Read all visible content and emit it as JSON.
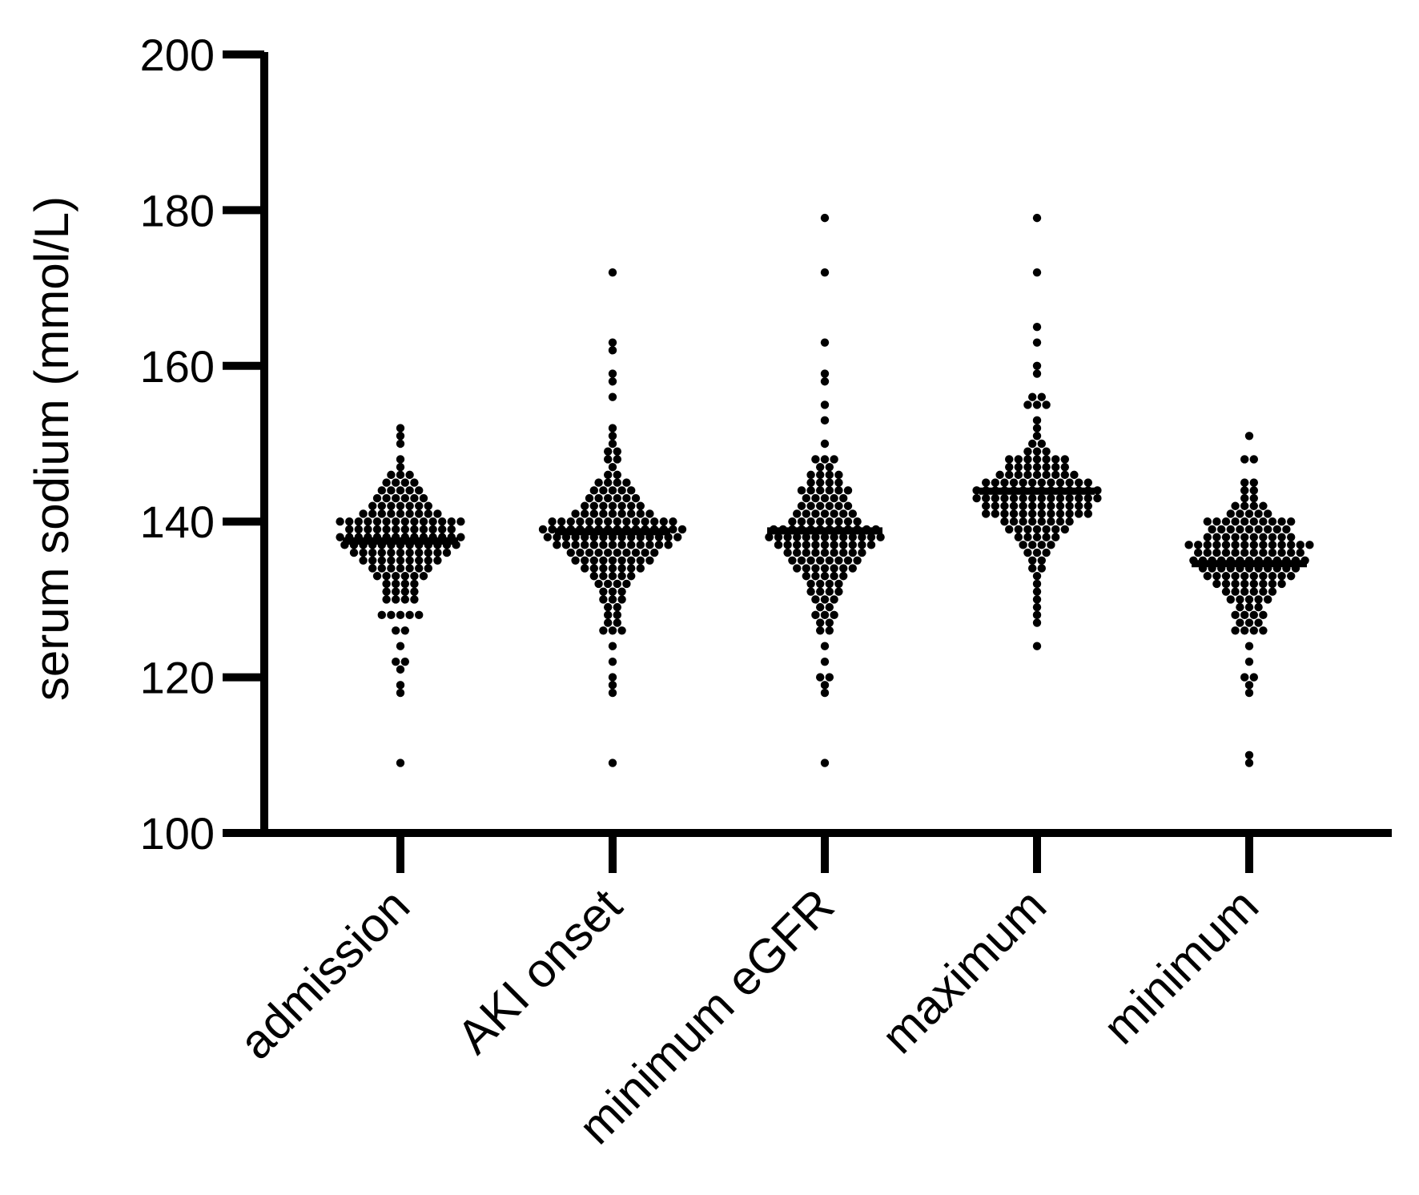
{
  "chart_data": {
    "type": "scatter",
    "subtype": "beeswarm-dot-plot",
    "title": "",
    "xlabel": "",
    "ylabel": "serum sodium (mmol/L)",
    "ylim": [
      100,
      200
    ],
    "yticks": [
      100,
      120,
      140,
      160,
      180,
      200
    ],
    "grid": false,
    "legend": "none",
    "colors": {
      "points": "#000000",
      "axes": "#000000",
      "median": "#000000"
    },
    "categories": [
      "admission",
      "AKI onset",
      "minimum eGFR",
      "maximum",
      "minimum"
    ],
    "series": [
      {
        "category": "admission",
        "median": 137.5,
        "values": [
          152,
          151,
          150,
          148,
          147,
          146,
          146,
          146,
          145,
          145,
          145,
          145,
          144,
          144,
          144,
          144,
          144,
          143,
          143,
          143,
          143,
          143,
          143,
          142,
          142,
          142,
          142,
          142,
          142,
          142,
          141,
          141,
          141,
          141,
          141,
          141,
          141,
          141,
          141,
          140,
          140,
          140,
          140,
          140,
          140,
          140,
          140,
          140,
          140,
          140,
          140,
          140,
          140,
          139,
          139,
          139,
          139,
          139,
          139,
          139,
          139,
          139,
          139,
          139,
          139,
          138,
          138,
          138,
          138,
          138,
          138,
          138,
          138,
          138,
          138,
          138,
          138,
          138,
          138,
          137,
          137,
          137,
          137,
          137,
          137,
          137,
          137,
          137,
          137,
          137,
          137,
          137,
          136,
          136,
          136,
          136,
          136,
          136,
          136,
          136,
          136,
          136,
          136,
          135,
          135,
          135,
          135,
          135,
          135,
          135,
          135,
          135,
          134,
          134,
          134,
          134,
          134,
          134,
          134,
          133,
          133,
          133,
          133,
          133,
          133,
          132,
          132,
          132,
          132,
          131,
          131,
          131,
          131,
          130,
          130,
          130,
          130,
          128,
          128,
          128,
          128,
          128,
          126,
          126,
          124,
          122,
          122,
          121,
          119,
          118,
          109
        ]
      },
      {
        "category": "AKI onset",
        "median": 138.7,
        "values": [
          172,
          163,
          162,
          159,
          158,
          156,
          152,
          151,
          150,
          149,
          149,
          148,
          148,
          147,
          146,
          146,
          145,
          145,
          145,
          145,
          144,
          144,
          144,
          144,
          144,
          143,
          143,
          143,
          143,
          143,
          143,
          142,
          142,
          142,
          142,
          142,
          142,
          142,
          141,
          141,
          141,
          141,
          141,
          141,
          141,
          141,
          141,
          140,
          140,
          140,
          140,
          140,
          140,
          140,
          140,
          140,
          140,
          140,
          140,
          140,
          140,
          139,
          139,
          139,
          139,
          139,
          139,
          139,
          139,
          139,
          139,
          139,
          139,
          139,
          139,
          139,
          139,
          138,
          138,
          138,
          138,
          138,
          138,
          138,
          138,
          138,
          138,
          138,
          138,
          138,
          138,
          138,
          137,
          137,
          137,
          137,
          137,
          137,
          137,
          137,
          137,
          137,
          137,
          137,
          137,
          136,
          136,
          136,
          136,
          136,
          136,
          136,
          136,
          136,
          136,
          135,
          135,
          135,
          135,
          135,
          135,
          135,
          135,
          135,
          134,
          134,
          134,
          134,
          134,
          134,
          134,
          133,
          133,
          133,
          133,
          133,
          132,
          132,
          132,
          132,
          131,
          131,
          131,
          130,
          130,
          130,
          129,
          129,
          128,
          128,
          127,
          127,
          126,
          126,
          126,
          124,
          122,
          120,
          119,
          118,
          109
        ]
      },
      {
        "category": "minimum eGFR",
        "median": 138.8,
        "values": [
          179,
          172,
          163,
          159,
          158,
          155,
          153,
          150,
          148,
          148,
          148,
          147,
          147,
          146,
          146,
          146,
          146,
          145,
          145,
          145,
          145,
          144,
          144,
          144,
          144,
          144,
          144,
          143,
          143,
          143,
          143,
          143,
          142,
          142,
          142,
          142,
          142,
          142,
          141,
          141,
          141,
          141,
          141,
          141,
          141,
          140,
          140,
          140,
          140,
          140,
          140,
          140,
          140,
          139,
          139,
          139,
          139,
          139,
          139,
          139,
          139,
          139,
          139,
          139,
          139,
          138,
          138,
          138,
          138,
          138,
          138,
          138,
          138,
          138,
          138,
          138,
          138,
          138,
          137,
          137,
          137,
          137,
          137,
          137,
          137,
          137,
          137,
          137,
          137,
          136,
          136,
          136,
          136,
          136,
          136,
          136,
          136,
          136,
          135,
          135,
          135,
          135,
          135,
          135,
          135,
          135,
          134,
          134,
          134,
          134,
          134,
          134,
          134,
          133,
          133,
          133,
          133,
          133,
          132,
          132,
          132,
          132,
          131,
          131,
          131,
          131,
          130,
          130,
          130,
          129,
          129,
          128,
          128,
          128,
          127,
          127,
          126,
          126,
          124,
          122,
          120,
          120,
          119,
          118,
          109
        ]
      },
      {
        "category": "maximum",
        "median": 143.9,
        "values": [
          179,
          172,
          165,
          163,
          160,
          159,
          156,
          156,
          155,
          155,
          155,
          153,
          152,
          151,
          150,
          150,
          149,
          149,
          149,
          148,
          148,
          148,
          148,
          148,
          148,
          148,
          147,
          147,
          147,
          147,
          147,
          147,
          147,
          146,
          146,
          146,
          146,
          146,
          146,
          146,
          146,
          146,
          145,
          145,
          145,
          145,
          145,
          145,
          145,
          145,
          145,
          145,
          145,
          145,
          144,
          144,
          144,
          144,
          144,
          144,
          144,
          144,
          144,
          144,
          144,
          144,
          144,
          144,
          143,
          143,
          143,
          143,
          143,
          143,
          143,
          143,
          143,
          143,
          143,
          143,
          143,
          143,
          142,
          142,
          142,
          142,
          142,
          142,
          142,
          142,
          142,
          142,
          142,
          142,
          141,
          141,
          141,
          141,
          141,
          141,
          141,
          141,
          141,
          141,
          141,
          141,
          140,
          140,
          140,
          140,
          140,
          140,
          140,
          140,
          139,
          139,
          139,
          139,
          139,
          139,
          139,
          138,
          138,
          138,
          138,
          138,
          137,
          137,
          137,
          137,
          136,
          136,
          136,
          135,
          135,
          134,
          134,
          133,
          132,
          131,
          130,
          129,
          128,
          127,
          124
        ]
      },
      {
        "category": "minimum",
        "median": 134.6,
        "values": [
          151,
          148,
          148,
          145,
          145,
          144,
          144,
          143,
          143,
          142,
          142,
          142,
          142,
          141,
          141,
          141,
          141,
          141,
          140,
          140,
          140,
          140,
          140,
          140,
          140,
          140,
          140,
          140,
          139,
          139,
          139,
          139,
          139,
          139,
          139,
          139,
          139,
          138,
          138,
          138,
          138,
          138,
          138,
          138,
          138,
          138,
          138,
          137,
          137,
          137,
          137,
          137,
          137,
          137,
          137,
          137,
          137,
          137,
          137,
          137,
          137,
          136,
          136,
          136,
          136,
          136,
          136,
          136,
          136,
          136,
          136,
          136,
          136,
          135,
          135,
          135,
          135,
          135,
          135,
          135,
          135,
          135,
          135,
          135,
          135,
          135,
          134,
          134,
          134,
          134,
          134,
          134,
          134,
          134,
          134,
          134,
          134,
          133,
          133,
          133,
          133,
          133,
          133,
          133,
          133,
          133,
          133,
          132,
          132,
          132,
          132,
          132,
          132,
          132,
          132,
          131,
          131,
          131,
          131,
          131,
          131,
          130,
          130,
          130,
          130,
          130,
          129,
          129,
          129,
          128,
          128,
          128,
          128,
          127,
          127,
          127,
          126,
          126,
          126,
          126,
          124,
          122,
          120,
          120,
          119,
          118,
          110,
          109
        ]
      }
    ]
  }
}
